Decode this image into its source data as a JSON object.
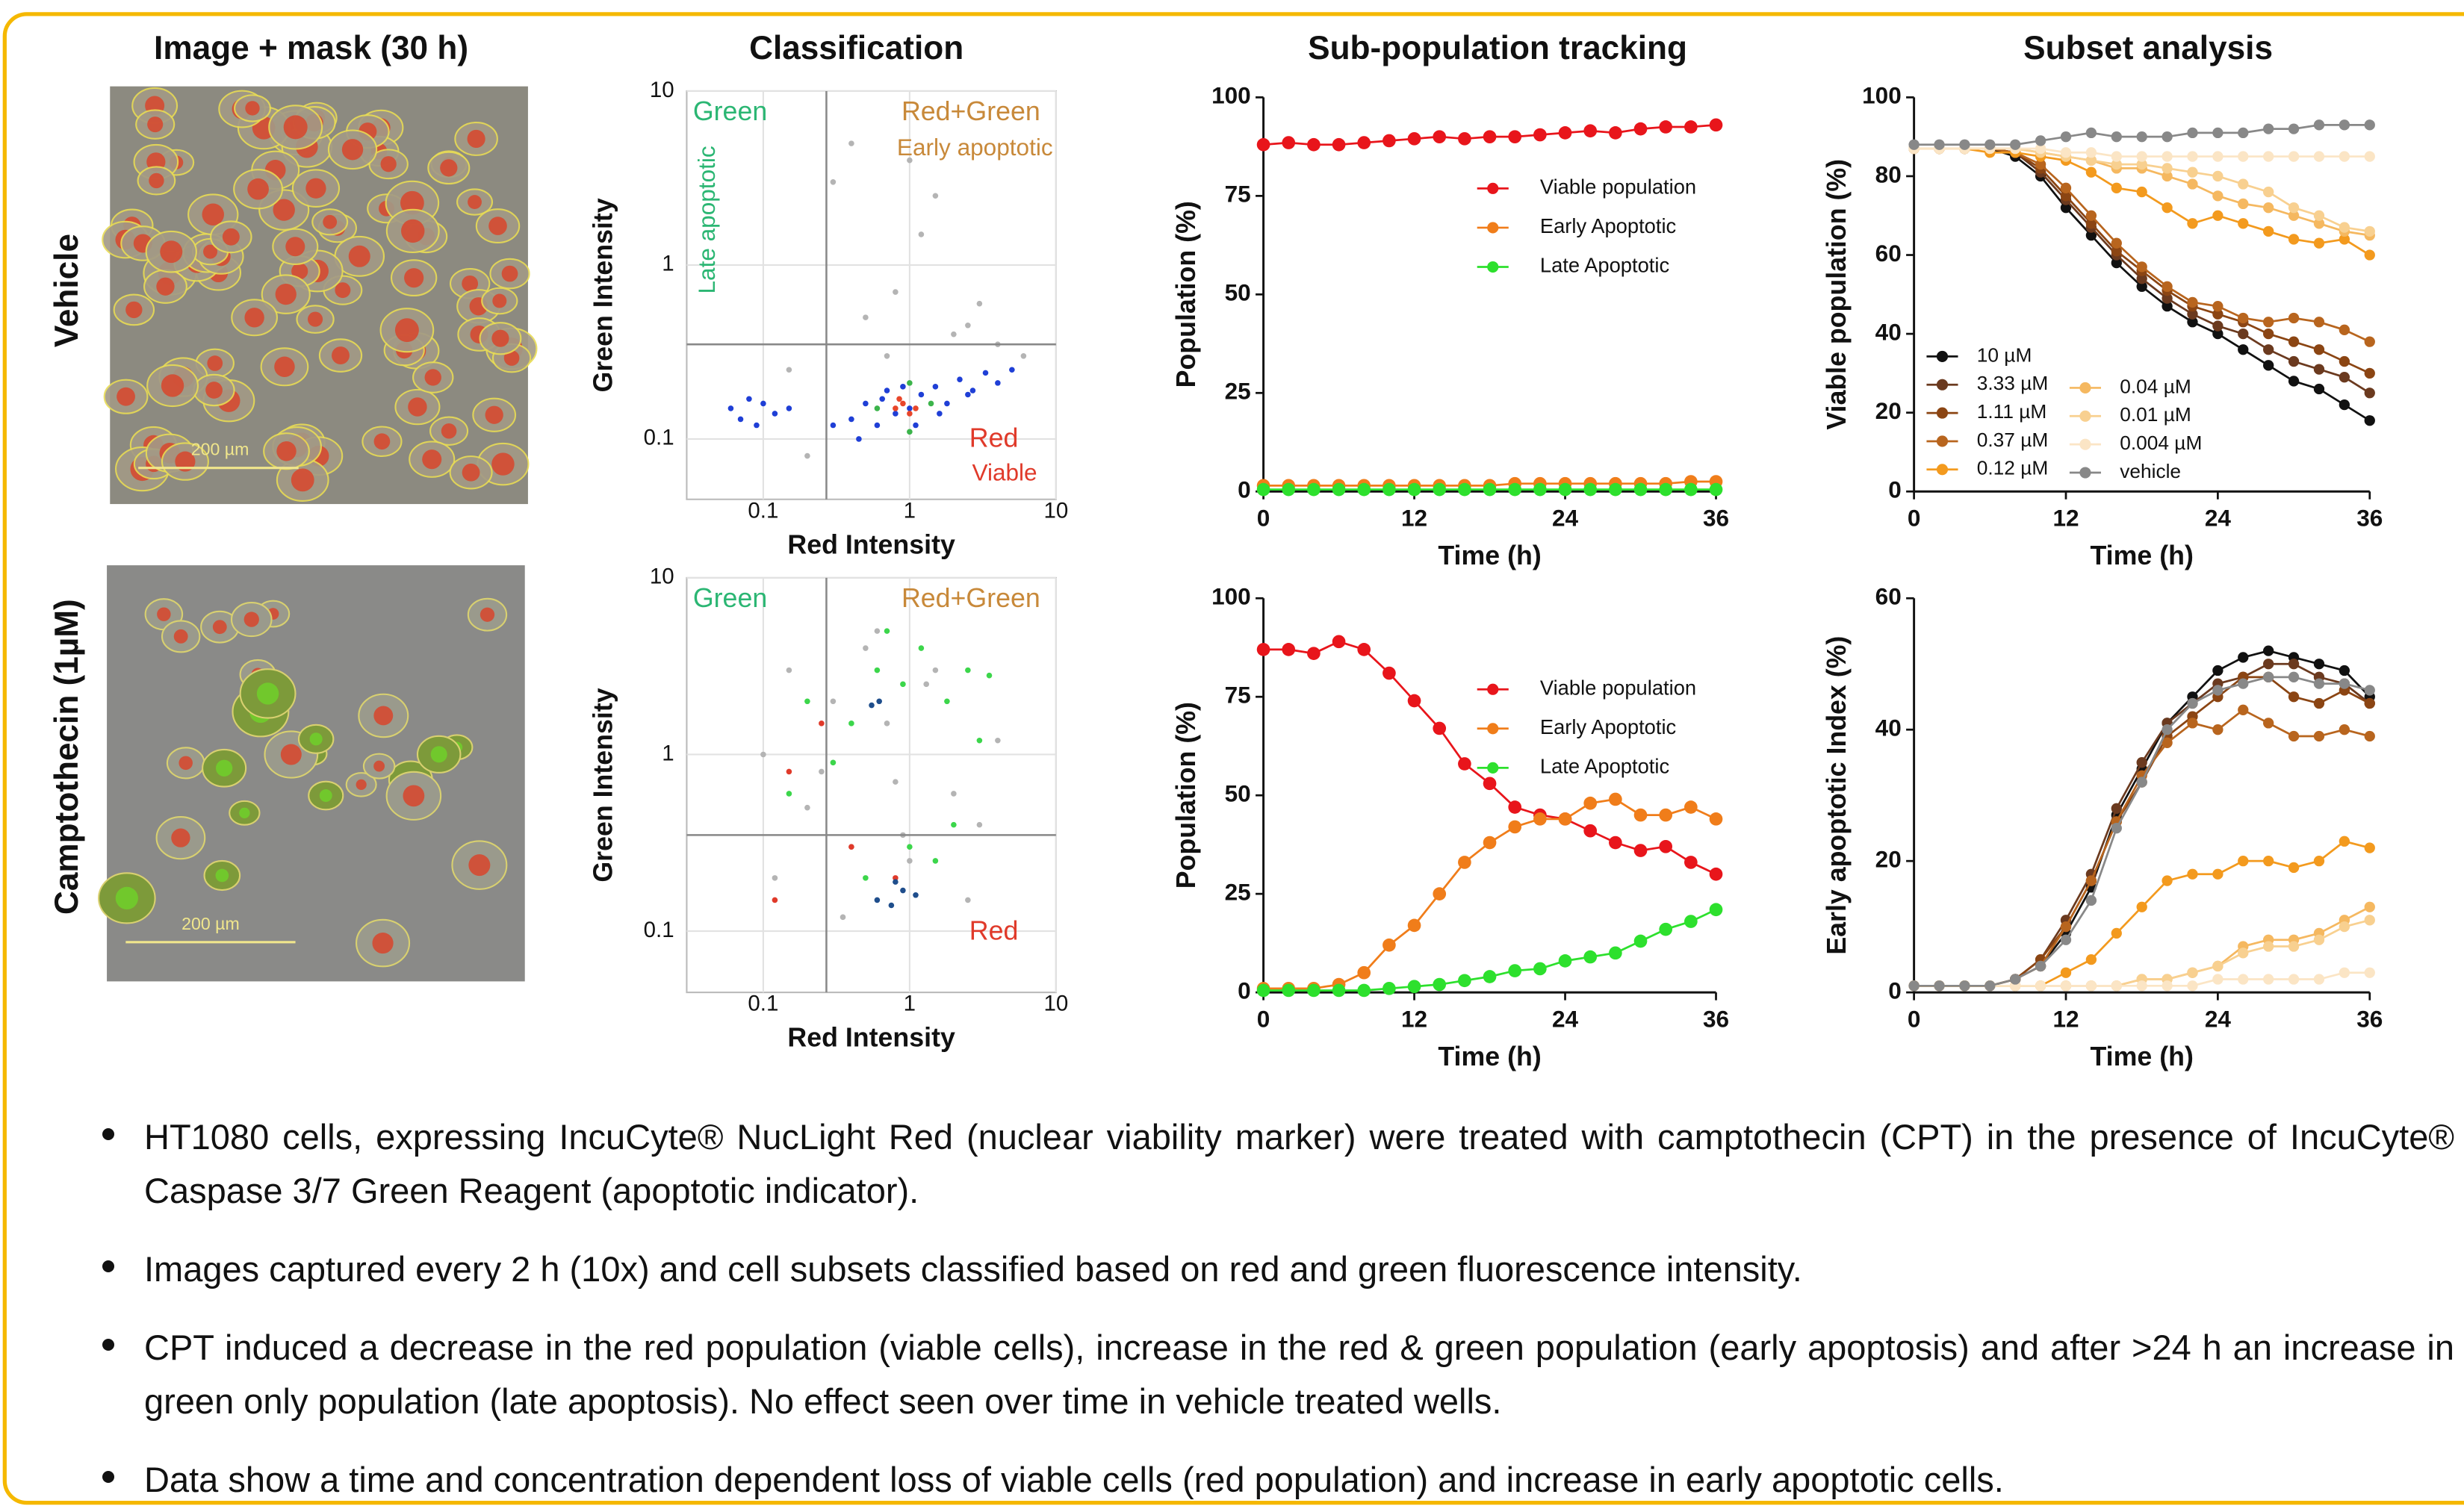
{
  "headers": [
    "Image + mask (30 h)",
    "Classification",
    "Sub-population tracking",
    "Subset analysis"
  ],
  "row_labels": [
    "Vehicle",
    "Camptothecin (1µM)"
  ],
  "scale_bar_label": "200 µm",
  "chart_data": [
    {
      "type": "scatter",
      "log": true,
      "xlabel": "Red Intensity",
      "ylabel": "Green Intensity",
      "xlim": [
        0.03,
        10
      ],
      "ylim": [
        0.045,
        10
      ],
      "xticks": [
        0.1,
        1,
        10
      ],
      "yticks": [
        0.1,
        1,
        10
      ],
      "gates": {
        "x": 0.27,
        "y": 0.35
      },
      "annotations": [
        {
          "text": "Green",
          "quadrant": "upper-left",
          "color": "#2bb673"
        },
        {
          "text": "Late apoptotic",
          "quadrant": "upper-left",
          "color": "#2bb673"
        },
        {
          "text": "Red+Green",
          "quadrant": "upper-right",
          "color": "#c8893a"
        },
        {
          "text": "Early apoptotic",
          "quadrant": "upper-right",
          "color": "#c8893a"
        },
        {
          "text": "Red",
          "quadrant": "lower-right",
          "color": "#e03a2a"
        },
        {
          "text": "Viable",
          "quadrant": "lower-right",
          "color": "#e03a2a"
        }
      ],
      "series": [
        {
          "color": "#b4b4b4",
          "x": [
            0.3,
            0.5,
            0.8,
            1.2,
            2,
            3,
            0.15,
            0.4,
            1.5,
            2.5,
            0.7,
            4,
            0.2,
            1.0,
            6
          ],
          "y": [
            3,
            0.5,
            0.7,
            1.5,
            0.4,
            0.6,
            0.25,
            5,
            2.5,
            0.45,
            0.3,
            0.35,
            0.08,
            4,
            0.3
          ]
        },
        {
          "color": "#1f3fd6",
          "x": [
            0.06,
            0.07,
            0.08,
            0.09,
            0.1,
            0.12,
            0.15,
            0.3,
            0.4,
            0.5,
            0.6,
            0.7,
            0.8,
            0.9,
            1.0,
            1.2,
            1.5,
            1.8,
            2.2,
            2.7,
            3.3,
            4,
            5,
            0.45,
            0.65,
            1.1,
            1.6,
            2.5
          ],
          "y": [
            0.15,
            0.13,
            0.17,
            0.12,
            0.16,
            0.14,
            0.15,
            0.12,
            0.13,
            0.16,
            0.12,
            0.19,
            0.14,
            0.2,
            0.15,
            0.18,
            0.2,
            0.16,
            0.22,
            0.19,
            0.24,
            0.21,
            0.25,
            0.1,
            0.17,
            0.12,
            0.14,
            0.18
          ]
        },
        {
          "color": "#3cb44b",
          "x": [
            0.6,
            1.4,
            1.0,
            1.0
          ],
          "y": [
            0.15,
            0.16,
            0.11,
            0.21
          ]
        },
        {
          "color": "#e8462a",
          "x": [
            0.8,
            0.9,
            1.0,
            1.1,
            0.85
          ],
          "y": [
            0.15,
            0.16,
            0.14,
            0.15,
            0.17
          ]
        }
      ]
    },
    {
      "type": "scatter",
      "log": true,
      "xlabel": "Red Intensity",
      "ylabel": "Green Intensity",
      "xlim": [
        0.03,
        10
      ],
      "ylim": [
        0.045,
        10
      ],
      "xticks": [
        0.1,
        1,
        10
      ],
      "yticks": [
        0.1,
        1,
        10
      ],
      "gates": {
        "x": 0.27,
        "y": 0.35
      },
      "annotations": [
        {
          "text": "Green",
          "quadrant": "upper-left",
          "color": "#2bb673"
        },
        {
          "text": "Red+Green",
          "quadrant": "upper-right",
          "color": "#c8893a"
        },
        {
          "text": "Red",
          "quadrant": "lower-right",
          "color": "#e03a2a"
        }
      ],
      "series": [
        {
          "color": "#b4b4b4",
          "x": [
            0.1,
            0.15,
            0.2,
            0.3,
            0.4,
            0.5,
            0.7,
            1,
            1.5,
            2,
            3,
            4,
            0.12,
            0.25,
            0.6,
            0.9,
            1.3,
            2.5,
            0.35,
            0.8
          ],
          "y": [
            1,
            3,
            0.5,
            2,
            0.3,
            4,
            1.5,
            0.25,
            3,
            0.6,
            0.4,
            1.2,
            0.2,
            0.8,
            5,
            0.35,
            2.5,
            0.15,
            0.12,
            0.7
          ]
        },
        {
          "color": "#3cd64b",
          "x": [
            0.2,
            0.4,
            0.6,
            0.9,
            1.2,
            1.8,
            2.5,
            3,
            0.15,
            0.5,
            1,
            2,
            0.3,
            0.7,
            1.5,
            3.5
          ],
          "y": [
            2,
            1.5,
            3,
            2.5,
            4,
            2,
            3,
            1.2,
            0.6,
            0.2,
            0.3,
            0.4,
            0.9,
            5,
            0.25,
            2.8
          ]
        },
        {
          "color": "#e03a2a",
          "x": [
            0.15,
            0.25,
            0.4,
            0.8,
            0.12
          ],
          "y": [
            0.8,
            1.5,
            0.3,
            0.2,
            0.15
          ]
        },
        {
          "color": "#1f4e8c",
          "x": [
            0.6,
            0.75,
            0.9,
            1.1,
            0.8,
            0.55,
            0.62
          ],
          "y": [
            0.15,
            0.14,
            0.17,
            0.16,
            0.19,
            1.9,
            2.0
          ]
        }
      ]
    },
    {
      "type": "line",
      "xlabel": "Time (h)",
      "ylabel": "Population (%)",
      "xlim": [
        0,
        36
      ],
      "xticks": [
        0,
        12,
        24,
        36
      ],
      "ylim": [
        0,
        100
      ],
      "yticks": [
        0,
        25,
        50,
        75,
        100
      ],
      "legend": "upper-right",
      "x": [
        0,
        2,
        4,
        6,
        8,
        10,
        12,
        14,
        16,
        18,
        20,
        22,
        24,
        26,
        28,
        30,
        32,
        34,
        36
      ],
      "series": [
        {
          "name": "Viable population",
          "color": "#e8151b",
          "values": [
            88,
            88.5,
            88,
            88,
            88.5,
            89,
            89.5,
            90,
            89.5,
            90,
            90,
            90.5,
            91,
            91.5,
            91,
            92,
            92.5,
            92.5,
            93
          ]
        },
        {
          "name": "Early Apoptotic",
          "color": "#f07d1a",
          "values": [
            1.5,
            1.5,
            1.5,
            1.5,
            1.5,
            1.5,
            1.5,
            1.5,
            1.5,
            1.5,
            2,
            2,
            2,
            2,
            2,
            2,
            2,
            2.5,
            2.5
          ]
        },
        {
          "name": "Late Apoptotic",
          "color": "#2de02d",
          "values": [
            0.5,
            0.5,
            0.5,
            0.5,
            0.5,
            0.5,
            0.5,
            0.5,
            0.5,
            0.5,
            0.5,
            0.5,
            0.5,
            0.5,
            0.5,
            0.5,
            0.5,
            0.5,
            0.5
          ]
        }
      ]
    },
    {
      "type": "line",
      "xlabel": "Time (h)",
      "ylabel": "Population (%)",
      "xlim": [
        0,
        36
      ],
      "xticks": [
        0,
        12,
        24,
        36
      ],
      "ylim": [
        0,
        100
      ],
      "yticks": [
        0,
        25,
        50,
        75,
        100
      ],
      "legend": "upper-right",
      "x": [
        0,
        2,
        4,
        6,
        8,
        10,
        12,
        14,
        16,
        18,
        20,
        22,
        24,
        26,
        28,
        30,
        32,
        34,
        36
      ],
      "series": [
        {
          "name": "Viable population",
          "color": "#e8151b",
          "values": [
            87,
            87,
            86,
            89,
            87,
            81,
            74,
            67,
            58,
            53,
            47,
            45,
            44,
            41,
            38,
            36,
            37,
            33,
            30
          ]
        },
        {
          "name": "Early Apoptotic",
          "color": "#f07d1a",
          "values": [
            1,
            1,
            1,
            2,
            5,
            12,
            17,
            25,
            33,
            38,
            42,
            44,
            44,
            48,
            49,
            45,
            45,
            47,
            44
          ]
        },
        {
          "name": "Late Apoptotic",
          "color": "#2de02d",
          "values": [
            0.5,
            0.5,
            0.5,
            0.5,
            0.5,
            1,
            1.5,
            2,
            3,
            4,
            5.5,
            6,
            8,
            9,
            10,
            13,
            16,
            18,
            21
          ]
        }
      ]
    },
    {
      "type": "line",
      "xlabel": "Time (h)",
      "ylabel": "Viable population (%)",
      "xlim": [
        0,
        36
      ],
      "xticks": [
        0,
        12,
        24,
        36
      ],
      "ylim": [
        0,
        100
      ],
      "yticks": [
        0,
        20,
        40,
        60,
        80,
        100
      ],
      "legend": "lower-left",
      "x": [
        0,
        2,
        4,
        6,
        8,
        10,
        12,
        14,
        16,
        18,
        20,
        22,
        24,
        26,
        28,
        30,
        32,
        34,
        36
      ],
      "series": [
        {
          "name": "10 µM",
          "color": "#111111",
          "values": [
            87,
            87,
            87,
            87,
            85,
            80,
            72,
            65,
            58,
            52,
            47,
            43,
            40,
            36,
            32,
            28,
            26,
            22,
            18
          ]
        },
        {
          "name": "3.33 µM",
          "color": "#6b3a1f",
          "values": [
            87,
            87,
            87,
            87,
            86,
            81,
            74,
            67,
            60,
            54,
            49,
            45,
            42,
            40,
            36,
            33,
            31,
            29,
            25
          ]
        },
        {
          "name": "1.11 µM",
          "color": "#8b4513",
          "values": [
            87,
            87,
            87,
            87,
            86,
            82,
            75,
            68,
            61,
            56,
            51,
            47,
            45,
            43,
            40,
            38,
            36,
            33,
            30
          ]
        },
        {
          "name": "0.37 µM",
          "color": "#b8651e",
          "values": [
            87,
            87,
            87,
            87,
            86,
            83,
            77,
            70,
            63,
            57,
            52,
            48,
            47,
            44,
            43,
            44,
            43,
            41,
            38
          ]
        },
        {
          "name": "0.12 µM",
          "color": "#f39a1e",
          "values": [
            87,
            87,
            87,
            86,
            86,
            85,
            84,
            81,
            77,
            76,
            72,
            68,
            70,
            68,
            66,
            64,
            63,
            64,
            60
          ]
        },
        {
          "name": "0.04 µM",
          "color": "#f5b860",
          "values": [
            87,
            87,
            87,
            87,
            87,
            86,
            85,
            84,
            82,
            82,
            80,
            78,
            75,
            73,
            72,
            70,
            68,
            66,
            65
          ]
        },
        {
          "name": "0.01 µM",
          "color": "#f8d090",
          "values": [
            87,
            87,
            87,
            87,
            87,
            86,
            85,
            84,
            83,
            83,
            82,
            81,
            80,
            78,
            76,
            72,
            70,
            67,
            66
          ]
        },
        {
          "name": "0.004 µM",
          "color": "#fbe5c5",
          "values": [
            87,
            87,
            87,
            87,
            87,
            87,
            86,
            86,
            85,
            85,
            85,
            85,
            85,
            85,
            85,
            85,
            85,
            85,
            85
          ]
        },
        {
          "name": "vehicle",
          "color": "#888888",
          "values": [
            88,
            88,
            88,
            88,
            88,
            89,
            90,
            91,
            90,
            90,
            90,
            91,
            91,
            91,
            92,
            92,
            93,
            93,
            93
          ]
        }
      ]
    },
    {
      "type": "line",
      "xlabel": "Time (h)",
      "ylabel": "Early apoptotic Index (%)",
      "xlim": [
        0,
        36
      ],
      "xticks": [
        0,
        12,
        24,
        36
      ],
      "ylim": [
        0,
        60
      ],
      "yticks": [
        0,
        20,
        40,
        60
      ],
      "x": [
        0,
        2,
        4,
        6,
        8,
        10,
        12,
        14,
        16,
        18,
        20,
        22,
        24,
        26,
        28,
        30,
        32,
        34,
        36
      ],
      "series": [
        {
          "color": "#111111",
          "values": [
            1,
            1,
            1,
            1,
            2,
            4,
            9,
            16,
            27,
            34,
            41,
            45,
            49,
            51,
            52,
            51,
            50,
            49,
            45
          ]
        },
        {
          "color": "#6b3a1f",
          "values": [
            1,
            1,
            1,
            1,
            2,
            5,
            11,
            18,
            28,
            35,
            41,
            44,
            47,
            48,
            50,
            50,
            48,
            47,
            44
          ]
        },
        {
          "color": "#8b4513",
          "values": [
            1,
            1,
            1,
            1,
            2,
            5,
            10,
            17,
            26,
            32,
            39,
            42,
            45,
            48,
            48,
            45,
            44,
            46,
            44
          ]
        },
        {
          "color": "#b8651e",
          "values": [
            1,
            1,
            1,
            1,
            2,
            4,
            10,
            17,
            26,
            33,
            38,
            41,
            40,
            43,
            41,
            39,
            39,
            40,
            39
          ]
        },
        {
          "color": "#f39a1e",
          "values": [
            1,
            1,
            1,
            1,
            1,
            1,
            3,
            5,
            9,
            13,
            17,
            18,
            18,
            20,
            20,
            19,
            20,
            23,
            22
          ]
        },
        {
          "color": "#f5b860",
          "values": [
            1,
            1,
            1,
            1,
            1,
            1,
            1,
            1,
            1,
            2,
            2,
            3,
            4,
            7,
            8,
            8,
            9,
            11,
            13
          ]
        },
        {
          "color": "#f8d090",
          "values": [
            1,
            1,
            1,
            1,
            1,
            1,
            1,
            1,
            1,
            2,
            2,
            3,
            4,
            6,
            7,
            7,
            8,
            10,
            11
          ]
        },
        {
          "color": "#fbe5c5",
          "values": [
            1,
            1,
            1,
            1,
            1,
            1,
            1,
            1,
            1,
            1,
            1,
            1,
            2,
            2,
            2,
            2,
            2,
            3,
            3
          ]
        },
        {
          "color": "#888888",
          "values": [
            1,
            1,
            1,
            1,
            2,
            4,
            8,
            14,
            25,
            32,
            40,
            44,
            46,
            47,
            48,
            48,
            47,
            47,
            46
          ]
        }
      ]
    }
  ],
  "bullets": [
    "HT1080 cells, expressing IncuCyte® NucLight Red (nuclear viability marker) were treated with camptothecin (CPT) in the presence of IncuCyte® Caspase 3/7 Green Reagent (apoptotic indicator).",
    "Images captured every 2 h (10x) and cell subsets classified based on red and green fluorescence intensity.",
    "CPT induced a decrease in the red population (viable cells), increase in the red & green population (early apoptosis) and after >24 h an increase in green only population (late apoptosis). No effect seen over time in vehicle treated wells.",
    "Data show a time and concentration dependent loss of viable cells (red population) and increase in early apoptotic cells."
  ]
}
